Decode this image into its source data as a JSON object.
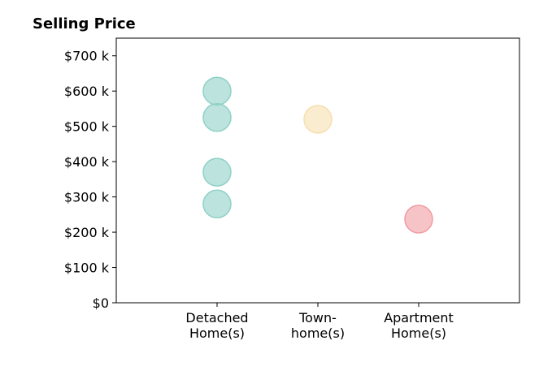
{
  "chart_data": {
    "type": "scatter",
    "title": "Selling Price",
    "x": [
      1,
      1,
      1,
      1,
      2,
      3
    ],
    "values": [
      600000,
      525000,
      370000,
      280000,
      520000,
      237000
    ],
    "colors": [
      "#8fd1c6",
      "#8fd1c6",
      "#8fd1c6",
      "#8fd1c6",
      "#f6dfae",
      "#f09ca2"
    ],
    "xlim": [
      0,
      4
    ],
    "xticks": [
      {
        "value": 1,
        "label": "Detached\nHome(s)"
      },
      {
        "value": 2,
        "label": "Town-\nhome(s)"
      },
      {
        "value": 3,
        "label": "Apartment\nHome(s)"
      }
    ],
    "ylim": [
      0,
      750000
    ],
    "yticks": [
      {
        "value": 0,
        "label": "$0"
      },
      {
        "value": 100000,
        "label": "$100 k"
      },
      {
        "value": 200000,
        "label": "$200 k"
      },
      {
        "value": 300000,
        "label": "$300 k"
      },
      {
        "value": 400000,
        "label": "$400 k"
      },
      {
        "value": 500000,
        "label": "$500 k"
      },
      {
        "value": 600000,
        "label": "$600 k"
      },
      {
        "value": 700000,
        "label": "$700 k"
      }
    ]
  }
}
